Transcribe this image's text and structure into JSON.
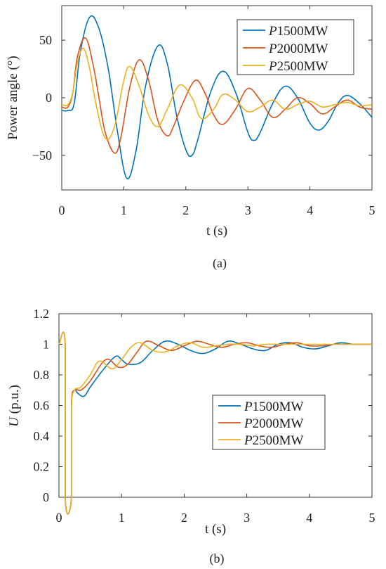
{
  "chart_data": [
    {
      "type": "line",
      "panel": "a",
      "caption": "(a)",
      "xlabel": "t (s)",
      "ylabel": "Power angle (°)",
      "xlim": [
        0,
        5
      ],
      "ylim": [
        -80,
        80
      ],
      "xticks": [
        "0",
        "1",
        "2",
        "3",
        "4",
        "5"
      ],
      "yticks": [
        "50",
        "0",
        "−50"
      ],
      "ytick_values": [
        50,
        0,
        -50
      ],
      "grid": false,
      "legend_position": "top-right",
      "series": [
        {
          "name": "P1500MW",
          "name_italic": "P",
          "name_rest": "1500MW",
          "color": "#0072BD",
          "x": [
            0.0,
            0.1,
            0.2,
            0.3,
            0.45,
            0.6,
            0.75,
            0.9,
            1.05,
            1.2,
            1.35,
            1.55,
            1.7,
            1.85,
            2.0,
            2.1,
            2.2,
            2.4,
            2.6,
            2.8,
            3.0,
            3.1,
            3.2,
            3.4,
            3.6,
            3.8,
            4.0,
            4.15,
            4.3,
            4.45,
            4.6,
            4.8,
            5.0
          ],
          "y": [
            -11,
            -11,
            -5,
            40,
            70,
            60,
            25,
            -30,
            -70,
            -45,
            10,
            45,
            30,
            -15,
            -45,
            -50,
            -35,
            5,
            23,
            5,
            -30,
            -37,
            -30,
            -5,
            10,
            0,
            -22,
            -28,
            -20,
            -5,
            2,
            -5,
            -17
          ]
        },
        {
          "name": "P2000MW",
          "name_italic": "P",
          "name_rest": "2000MW",
          "color": "#D95319",
          "x": [
            0.0,
            0.1,
            0.18,
            0.25,
            0.38,
            0.5,
            0.6,
            0.7,
            0.85,
            0.95,
            1.1,
            1.25,
            1.4,
            1.55,
            1.7,
            1.8,
            1.95,
            2.15,
            2.3,
            2.45,
            2.6,
            2.8,
            3.0,
            3.2,
            3.4,
            3.6,
            3.8,
            4.0,
            4.2,
            4.4,
            4.6,
            4.8,
            5.0
          ],
          "y": [
            -8,
            -8,
            5,
            35,
            52,
            30,
            0,
            -30,
            -48,
            -35,
            10,
            33,
            15,
            -20,
            -33,
            -25,
            -5,
            15,
            5,
            -15,
            -23,
            -10,
            8,
            -2,
            -17,
            -10,
            0,
            -5,
            -14,
            -8,
            -2,
            -8,
            -10
          ]
        },
        {
          "name": "P2500MW",
          "name_italic": "P",
          "name_rest": "2500MW",
          "color": "#EDB120",
          "x": [
            0.0,
            0.1,
            0.18,
            0.25,
            0.35,
            0.45,
            0.55,
            0.7,
            0.85,
            1.0,
            1.1,
            1.25,
            1.4,
            1.55,
            1.7,
            1.9,
            2.1,
            2.25,
            2.45,
            2.6,
            2.8,
            3.0,
            3.2,
            3.4,
            3.6,
            3.8,
            4.0,
            4.2,
            4.4,
            4.6,
            4.8,
            5.0
          ],
          "y": [
            -6,
            -6,
            5,
            30,
            43,
            25,
            -5,
            -35,
            -25,
            15,
            27,
            10,
            -15,
            -25,
            -10,
            11,
            0,
            -18,
            -10,
            3,
            -2,
            -12,
            -8,
            -2,
            -10,
            -6,
            -3,
            -8,
            -6,
            -4,
            -7,
            -6
          ]
        }
      ]
    },
    {
      "type": "line",
      "panel": "b",
      "caption": "(b)",
      "xlabel": "t (s)",
      "ylabel_italic": "U",
      "ylabel_rest": " (p.u.)",
      "xlim": [
        0,
        5
      ],
      "ylim": [
        0,
        1.2
      ],
      "xticks": [
        "0",
        "1",
        "2",
        "3",
        "4",
        "5"
      ],
      "yticks": [
        "0",
        "0.2",
        "0.4",
        "0.6",
        "0.8",
        "1",
        "1.2"
      ],
      "ytick_values": [
        0,
        0.2,
        0.4,
        0.6,
        0.8,
        1.0,
        1.2
      ],
      "grid": false,
      "legend_position": "center-right",
      "series": [
        {
          "name": "P1500MW",
          "name_italic": "P",
          "name_rest": "1500MW",
          "color": "#0072BD",
          "x": [
            0.0,
            0.1,
            0.1,
            0.2,
            0.2,
            0.25,
            0.3,
            0.4,
            0.5,
            0.7,
            0.9,
            1.0,
            1.1,
            1.3,
            1.5,
            1.7,
            1.9,
            2.1,
            2.3,
            2.5,
            2.7,
            2.9,
            3.1,
            3.3,
            3.5,
            3.7,
            3.9,
            4.1,
            4.3,
            4.5,
            4.7,
            4.9,
            5.0
          ],
          "y": [
            1.0,
            1.0,
            0.0,
            0.0,
            0.6,
            0.7,
            0.68,
            0.66,
            0.72,
            0.83,
            0.92,
            0.9,
            0.87,
            0.88,
            0.96,
            1.02,
            1.0,
            0.96,
            0.94,
            0.97,
            1.02,
            1.0,
            0.97,
            0.96,
            1.0,
            1.01,
            0.98,
            0.97,
            0.99,
            1.01,
            1.0,
            1.0,
            1.0
          ]
        },
        {
          "name": "P2000MW",
          "name_italic": "P",
          "name_rest": "2000MW",
          "color": "#D95319",
          "x": [
            0.0,
            0.1,
            0.1,
            0.2,
            0.2,
            0.25,
            0.35,
            0.5,
            0.75,
            0.95,
            1.1,
            1.25,
            1.4,
            1.6,
            1.8,
            2.0,
            2.2,
            2.4,
            2.6,
            2.8,
            3.0,
            3.2,
            3.4,
            3.6,
            3.8,
            4.0,
            4.2,
            4.4,
            4.6,
            4.8,
            5.0
          ],
          "y": [
            1.0,
            1.0,
            0.0,
            0.0,
            0.6,
            0.7,
            0.7,
            0.76,
            0.9,
            0.85,
            0.87,
            0.95,
            1.02,
            0.99,
            0.96,
            0.99,
            1.02,
            1.0,
            0.98,
            1.0,
            1.01,
            0.99,
            0.98,
            1.0,
            1.01,
            0.99,
            0.99,
            1.0,
            1.0,
            1.0,
            1.0
          ]
        },
        {
          "name": "P2500MW",
          "name_italic": "P",
          "name_rest": "2500MW",
          "color": "#EDB120",
          "x": [
            0.0,
            0.1,
            0.1,
            0.2,
            0.2,
            0.25,
            0.35,
            0.5,
            0.65,
            0.85,
            1.0,
            1.15,
            1.3,
            1.5,
            1.7,
            1.9,
            2.1,
            2.3,
            2.5,
            2.7,
            2.9,
            3.1,
            3.3,
            3.5,
            3.7,
            3.9,
            4.1,
            4.3,
            4.5,
            4.7,
            5.0
          ],
          "y": [
            1.0,
            1.0,
            0.0,
            0.0,
            0.58,
            0.7,
            0.72,
            0.8,
            0.89,
            0.84,
            0.9,
            0.98,
            1.01,
            0.96,
            0.95,
            0.99,
            1.01,
            0.98,
            0.99,
            1.0,
            1.0,
            0.99,
            1.0,
            1.0,
            1.0,
            1.0,
            1.0,
            1.0,
            1.0,
            1.0,
            1.0
          ]
        }
      ]
    }
  ]
}
